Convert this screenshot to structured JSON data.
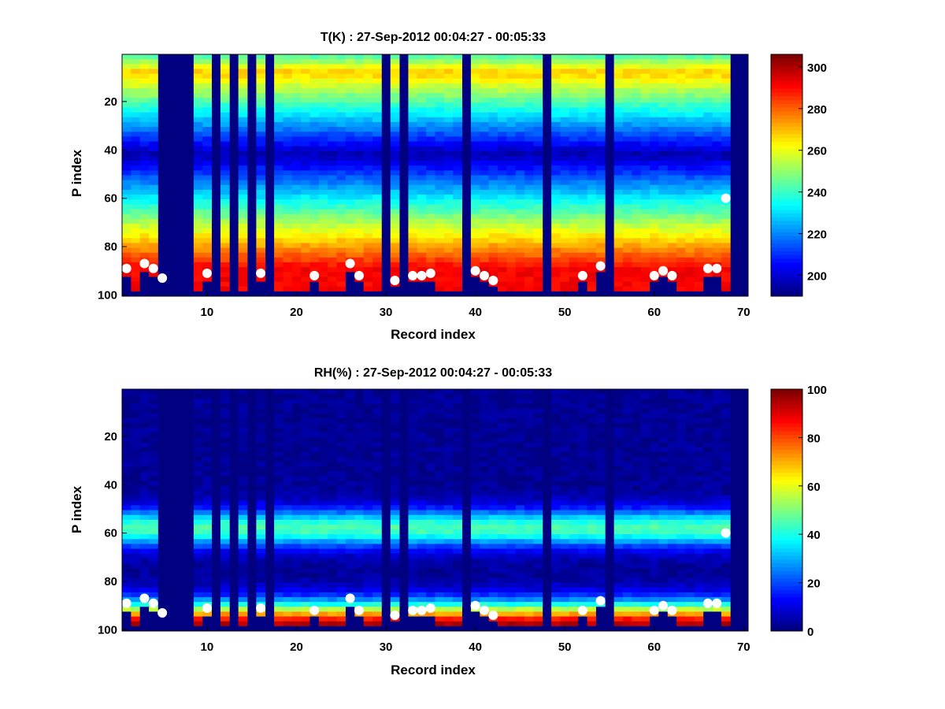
{
  "chart_data": [
    {
      "type": "heatmap",
      "title": "T(K) : 27-Sep-2012 00:04:27 - 00:05:33",
      "xlabel": "Record index",
      "ylabel": "P index",
      "xlim": [
        0.5,
        70.5
      ],
      "ylim": [
        100,
        1
      ],
      "y_reversed": true,
      "xticks": [
        10,
        20,
        30,
        40,
        50,
        60,
        70
      ],
      "yticks": [
        20,
        40,
        60,
        80,
        100
      ],
      "colormap": "jet",
      "colorbar": {
        "min": 190,
        "max": 306,
        "ticks": [
          200,
          220,
          240,
          260,
          280,
          300
        ]
      },
      "profile_shape": "warm peak (~270 K) near P index 8, cold minimum (~195 K) near P index 42, increasing to ~290 K at the bottom",
      "missing_records": [
        5,
        6,
        7,
        8,
        11,
        13,
        15,
        17,
        30,
        32,
        39,
        48,
        55,
        69,
        70
      ],
      "surface_markers": [
        {
          "x": 1,
          "y": 89
        },
        {
          "x": 3,
          "y": 87
        },
        {
          "x": 4,
          "y": 89
        },
        {
          "x": 5,
          "y": 93
        },
        {
          "x": 10,
          "y": 91
        },
        {
          "x": 16,
          "y": 91
        },
        {
          "x": 22,
          "y": 92
        },
        {
          "x": 26,
          "y": 87
        },
        {
          "x": 27,
          "y": 92
        },
        {
          "x": 31,
          "y": 94
        },
        {
          "x": 33,
          "y": 92
        },
        {
          "x": 34,
          "y": 92
        },
        {
          "x": 35,
          "y": 91
        },
        {
          "x": 40,
          "y": 90
        },
        {
          "x": 41,
          "y": 92
        },
        {
          "x": 42,
          "y": 94
        },
        {
          "x": 52,
          "y": 92
        },
        {
          "x": 54,
          "y": 88
        },
        {
          "x": 60,
          "y": 92
        },
        {
          "x": 61,
          "y": 90
        },
        {
          "x": 62,
          "y": 92
        },
        {
          "x": 66,
          "y": 89
        },
        {
          "x": 67,
          "y": 89
        },
        {
          "x": 68,
          "y": 60
        }
      ]
    },
    {
      "type": "heatmap",
      "title": "RH(%) : 27-Sep-2012 00:04:27 - 00:05:33",
      "xlabel": "Record index",
      "ylabel": "P index",
      "xlim": [
        0.5,
        70.5
      ],
      "ylim": [
        100,
        1
      ],
      "y_reversed": true,
      "xticks": [
        10,
        20,
        30,
        40,
        50,
        60,
        70
      ],
      "yticks": [
        20,
        40,
        60,
        80,
        100
      ],
      "colormap": "jet",
      "colorbar": {
        "min": 0,
        "max": 100,
        "ticks": [
          0,
          20,
          40,
          60,
          80,
          100
        ]
      },
      "profile_shape": "near 0% above P index 38, moist band (~45%) near P index 58, dry near 70, increasing to ~90% near the bottom",
      "missing_records": [
        5,
        6,
        7,
        8,
        11,
        13,
        15,
        17,
        30,
        32,
        39,
        48,
        55,
        69,
        70
      ],
      "surface_markers": [
        {
          "x": 1,
          "y": 89
        },
        {
          "x": 3,
          "y": 87
        },
        {
          "x": 4,
          "y": 89
        },
        {
          "x": 5,
          "y": 93
        },
        {
          "x": 10,
          "y": 91
        },
        {
          "x": 16,
          "y": 91
        },
        {
          "x": 22,
          "y": 92
        },
        {
          "x": 26,
          "y": 87
        },
        {
          "x": 27,
          "y": 92
        },
        {
          "x": 31,
          "y": 94
        },
        {
          "x": 33,
          "y": 92
        },
        {
          "x": 34,
          "y": 92
        },
        {
          "x": 35,
          "y": 91
        },
        {
          "x": 40,
          "y": 90
        },
        {
          "x": 41,
          "y": 92
        },
        {
          "x": 42,
          "y": 94
        },
        {
          "x": 52,
          "y": 92
        },
        {
          "x": 54,
          "y": 88
        },
        {
          "x": 60,
          "y": 92
        },
        {
          "x": 61,
          "y": 90
        },
        {
          "x": 62,
          "y": 92
        },
        {
          "x": 66,
          "y": 89
        },
        {
          "x": 67,
          "y": 89
        },
        {
          "x": 68,
          "y": 60
        }
      ]
    }
  ]
}
